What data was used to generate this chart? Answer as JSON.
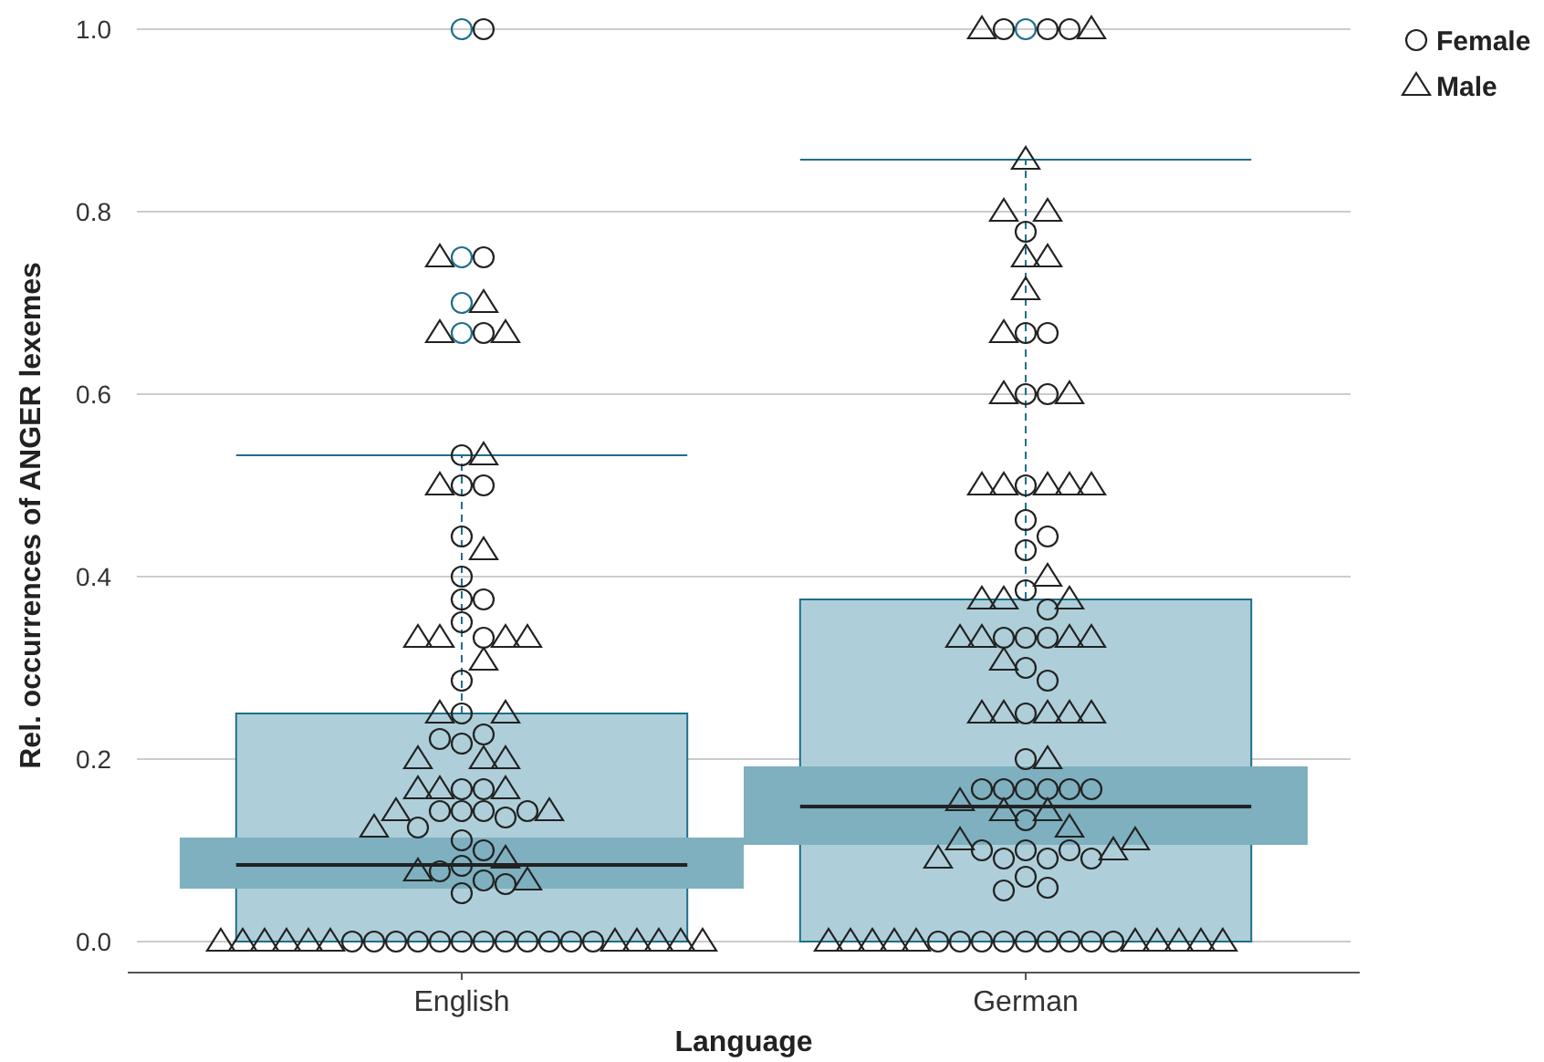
{
  "chart_data": {
    "type": "box",
    "xlabel": "Language",
    "ylabel": "Rel. occurrences of ANGER lexemes",
    "categories": [
      "English",
      "German"
    ],
    "ylim": [
      -0.034,
      1
    ],
    "yticks": [
      {
        "value": 0,
        "label": "0.0"
      },
      {
        "value": 0.2,
        "label": "0.2"
      },
      {
        "value": 0.4,
        "label": "0.4"
      },
      {
        "value": 0.6,
        "label": "0.6"
      },
      {
        "value": 0.8,
        "label": "0.8"
      },
      {
        "value": 1,
        "label": "1.0"
      }
    ],
    "grid": "y",
    "legend": "top right",
    "series": [
      {
        "color": "#aecfd9",
        "boxes": [
          {
            "low": 0,
            "q1": 0,
            "median": 0.084,
            "q3": 0.25,
            "high": 0.533,
            "outliers": [
              1.0,
              0.75,
              0.7,
              0.667
            ]
          },
          {
            "low": 0,
            "q1": 0,
            "median": 0.148,
            "q3": 0.375,
            "high": 0.857,
            "outliers": [
              1.0
            ]
          }
        ]
      },
      {
        "type": "bar",
        "color": "#7eb0bf",
        "base": [
          0.058,
          0.106
        ],
        "values": [
          0.056,
          0.086
        ]
      },
      {
        "type": "scatter",
        "name": "Female",
        "marker": "circle",
        "color": "#222222",
        "x": [
          "English",
          "English",
          "English",
          "English",
          "English",
          "English",
          "English",
          "English",
          "English",
          "English",
          "English",
          "English",
          "English",
          "English",
          "English",
          "English",
          "English",
          "English",
          "English",
          "English",
          "English",
          "English",
          "English",
          "English",
          "English",
          "English",
          "English",
          "English",
          "English",
          "English",
          "English",
          "English",
          "English",
          "English",
          "English",
          "English",
          "English",
          "English",
          "English",
          "English",
          "English",
          "English",
          "English",
          "English",
          "German",
          "German",
          "German",
          "German",
          "German",
          "German",
          "German",
          "German",
          "German",
          "German",
          "German",
          "German",
          "German",
          "German",
          "German",
          "German",
          "German",
          "German",
          "German",
          "German",
          "German",
          "German",
          "German",
          "German",
          "German",
          "German",
          "German",
          "German",
          "German",
          "German",
          "German",
          "German",
          "German",
          "German",
          "German",
          "German",
          "German",
          "German",
          "German",
          "German",
          "German",
          "German",
          "German",
          "German",
          "German",
          "German"
        ],
        "values": [
          1.0,
          0.75,
          0.667,
          0.533,
          0.5,
          0.5,
          0.444,
          0.4,
          0.375,
          0.375,
          0.35,
          0.333,
          0.286,
          0.25,
          0.227,
          0.217,
          0.222,
          0.167,
          0.167,
          0.143,
          0.143,
          0.143,
          0.136,
          0.125,
          0.143,
          0.111,
          0.1,
          0.083,
          0.077,
          0.067,
          0.053,
          0.063,
          0,
          0,
          0,
          0,
          0,
          0,
          0,
          0,
          0,
          0,
          0,
          0,
          1.0,
          1.0,
          1.0,
          0.778,
          0.667,
          0.667,
          0.6,
          0.6,
          0.5,
          0.462,
          0.444,
          0.429,
          0.385,
          0.364,
          0.333,
          0.333,
          0.333,
          0.3,
          0.286,
          0.25,
          0.2,
          0.167,
          0.167,
          0.167,
          0.167,
          0.167,
          0.167,
          0.133,
          0.1,
          0.091,
          0.091,
          0.1,
          0.1,
          0.091,
          0.071,
          0.059,
          0.056,
          0,
          0,
          0,
          0,
          0,
          0,
          0,
          0,
          0
        ]
      },
      {
        "type": "scatter",
        "name": "Male",
        "marker": "triangle",
        "color": "#222222",
        "x": [
          "English",
          "English",
          "English",
          "English",
          "English",
          "English",
          "English",
          "English",
          "English",
          "English",
          "English",
          "English",
          "English",
          "English",
          "English",
          "English",
          "English",
          "English",
          "English",
          "English",
          "English",
          "English",
          "English",
          "English",
          "English",
          "English",
          "English",
          "English",
          "English",
          "English",
          "English",
          "English",
          "English",
          "English",
          "English",
          "English",
          "English",
          "German",
          "German",
          "German",
          "German",
          "German",
          "German",
          "German",
          "German",
          "German",
          "German",
          "German",
          "German",
          "German",
          "German",
          "German",
          "German",
          "German",
          "German",
          "German",
          "German",
          "German",
          "German",
          "German",
          "German",
          "German",
          "German",
          "German",
          "German",
          "German",
          "German",
          "German",
          "German",
          "German",
          "German",
          "German",
          "German",
          "German",
          "German",
          "German",
          "German",
          "German",
          "German",
          "German",
          "German",
          "German",
          "German",
          "German",
          "German",
          "German"
        ],
        "values": [
          0.75,
          0.7,
          0.667,
          0.667,
          0.533,
          0.5,
          0.429,
          0.333,
          0.333,
          0.333,
          0.333,
          0.308,
          0.25,
          0.25,
          0.2,
          0.2,
          0.2,
          0.167,
          0.167,
          0.167,
          0.143,
          0.143,
          0.125,
          0.091,
          0.077,
          0.067,
          0,
          0,
          0,
          0,
          0,
          0,
          0,
          0,
          0,
          0,
          0,
          1.0,
          1.0,
          0.857,
          0.8,
          0.8,
          0.75,
          0.75,
          0.714,
          0.667,
          0.6,
          0.6,
          0.5,
          0.5,
          0.5,
          0.5,
          0.5,
          0.4,
          0.375,
          0.375,
          0.375,
          0.333,
          0.333,
          0.333,
          0.333,
          0.308,
          0.25,
          0.25,
          0.25,
          0.25,
          0.25,
          0.2,
          0.154,
          0.143,
          0.143,
          0.125,
          0.111,
          0.1,
          0.091,
          0.111,
          0,
          0,
          0,
          0,
          0,
          0,
          0,
          0,
          0,
          0
        ]
      }
    ]
  }
}
